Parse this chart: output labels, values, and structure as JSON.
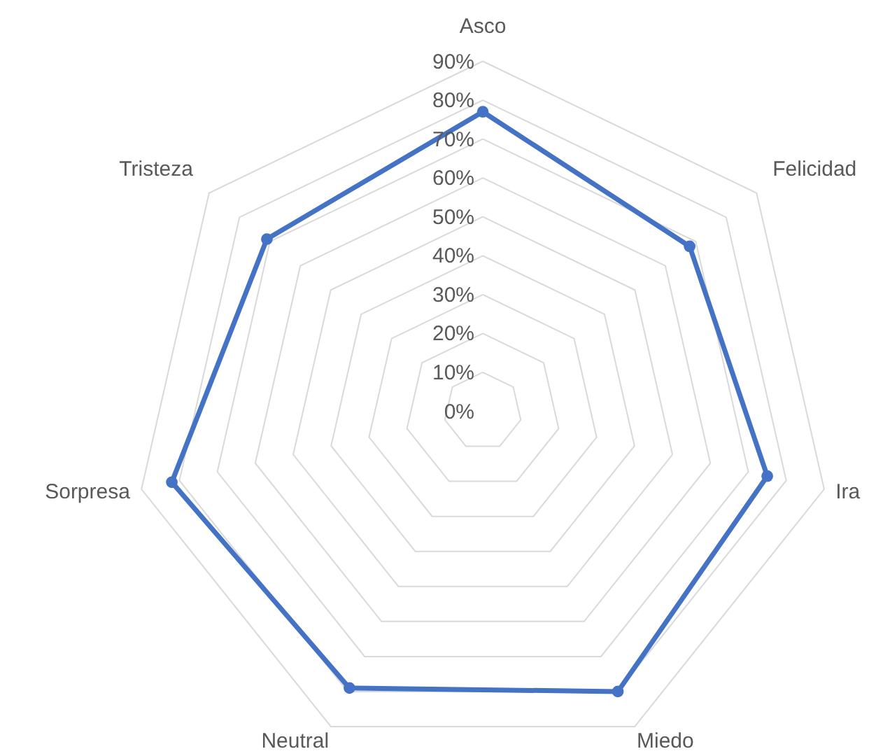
{
  "chart_data": {
    "type": "radar",
    "categories": [
      "Asco",
      "Felicidad",
      "Ira",
      "Miedo",
      "Neutral",
      "Sorpresa",
      "Tristeza"
    ],
    "series": [
      {
        "color": "#4472c4",
        "values": [
          77,
          68,
          75,
          80,
          79,
          82,
          71
        ]
      }
    ],
    "ylim": [
      0,
      90
    ],
    "yticks": [
      {
        "value": 0,
        "label": "0%"
      },
      {
        "value": 10,
        "label": "10%"
      },
      {
        "value": 20,
        "label": "20%"
      },
      {
        "value": 30,
        "label": "30%"
      },
      {
        "value": 40,
        "label": "40%"
      },
      {
        "value": 50,
        "label": "50%"
      },
      {
        "value": 60,
        "label": "60%"
      },
      {
        "value": 70,
        "label": "70%"
      },
      {
        "value": 80,
        "label": "80%"
      },
      {
        "value": 90,
        "label": "90%"
      }
    ],
    "grid": true,
    "marker": "circle",
    "line_style": "solid"
  }
}
